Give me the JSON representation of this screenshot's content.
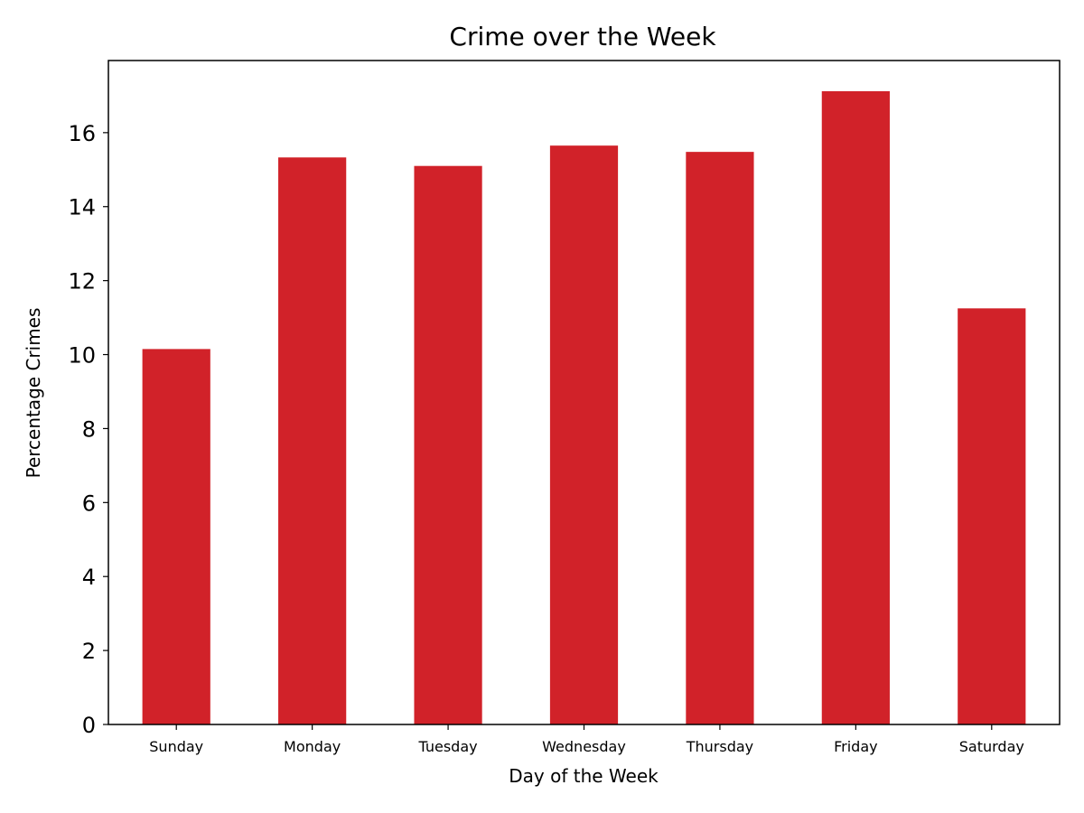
{
  "chart_data": {
    "type": "bar",
    "title": "Crime over the Week",
    "xlabel": "Day of the Week",
    "ylabel": "Percentage Crimes",
    "categories": [
      "Sunday",
      "Monday",
      "Tuesday",
      "Wednesday",
      "Thursday",
      "Friday",
      "Saturday"
    ],
    "values": [
      10.15,
      15.33,
      15.1,
      15.65,
      15.48,
      17.12,
      11.25
    ],
    "ylim": [
      0,
      17.95
    ],
    "yticks": [
      0,
      2,
      4,
      6,
      8,
      10,
      12,
      14,
      16
    ],
    "bar_color": "#d12229",
    "grid": false,
    "legend": "none"
  }
}
